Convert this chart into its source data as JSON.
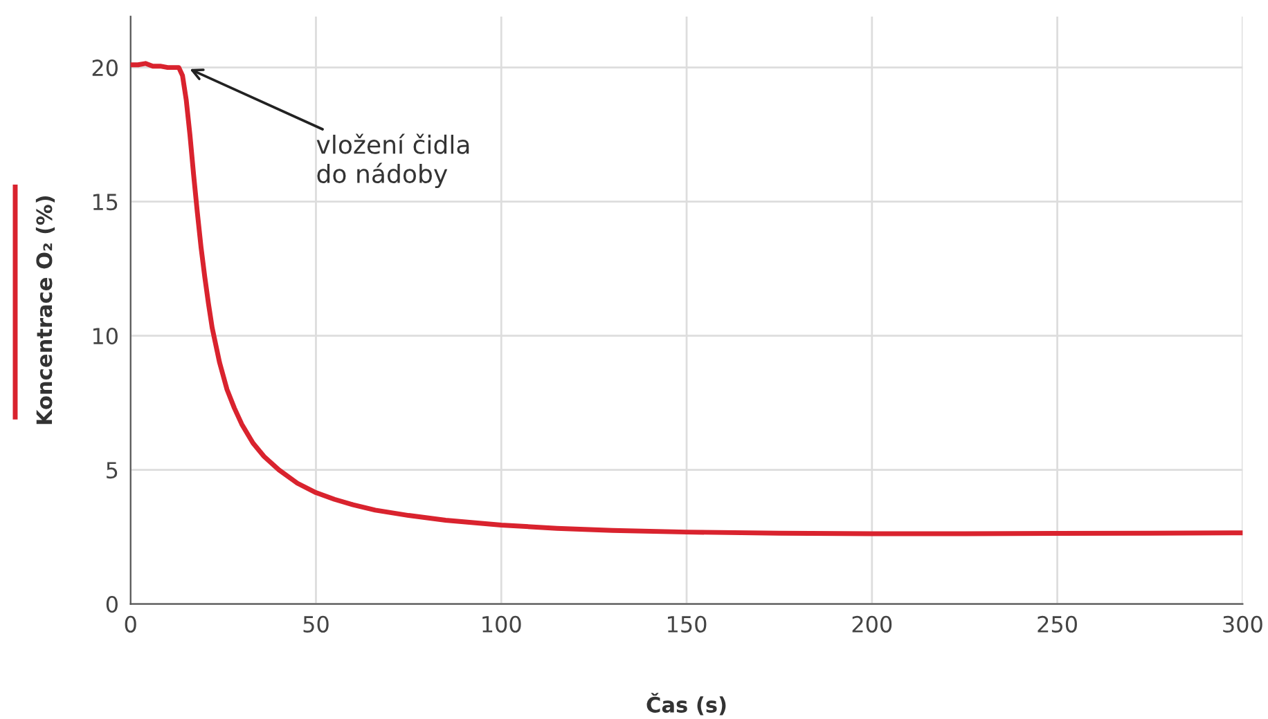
{
  "chart_data": {
    "type": "line",
    "xlabel": "Čas (s)",
    "ylabel": "Koncentrace O₂ (%)",
    "xlim": [
      0,
      300
    ],
    "ylim": [
      0,
      21.9
    ],
    "xticks": [
      0,
      50,
      100,
      150,
      200,
      250,
      300
    ],
    "yticks": [
      0,
      5,
      10,
      15,
      20
    ],
    "grid": true,
    "marker": "none",
    "line_style": "solid",
    "annotations": [
      {
        "text": "vložení čidla\ndo nádoby",
        "x": 15,
        "y": 20
      }
    ],
    "series": [
      {
        "color": "#d9232e",
        "x": [
          0,
          2,
          4,
          6,
          8,
          10,
          12,
          13,
          14,
          15,
          16,
          17,
          18,
          19,
          20,
          21,
          22,
          24,
          26,
          28,
          30,
          33,
          36,
          40,
          45,
          50,
          55,
          60,
          66,
          75,
          85,
          100,
          115,
          130,
          150,
          175,
          200,
          225,
          250,
          275,
          300
        ],
        "values": [
          20.1,
          20.1,
          20.15,
          20.05,
          20.05,
          20.0,
          20.0,
          20.0,
          19.7,
          18.8,
          17.5,
          16.0,
          14.6,
          13.3,
          12.2,
          11.2,
          10.3,
          9.0,
          8.0,
          7.3,
          6.7,
          6.0,
          5.5,
          5.0,
          4.5,
          4.15,
          3.9,
          3.7,
          3.5,
          3.3,
          3.12,
          2.94,
          2.82,
          2.74,
          2.68,
          2.64,
          2.62,
          2.62,
          2.63,
          2.64,
          2.65
        ]
      }
    ]
  }
}
